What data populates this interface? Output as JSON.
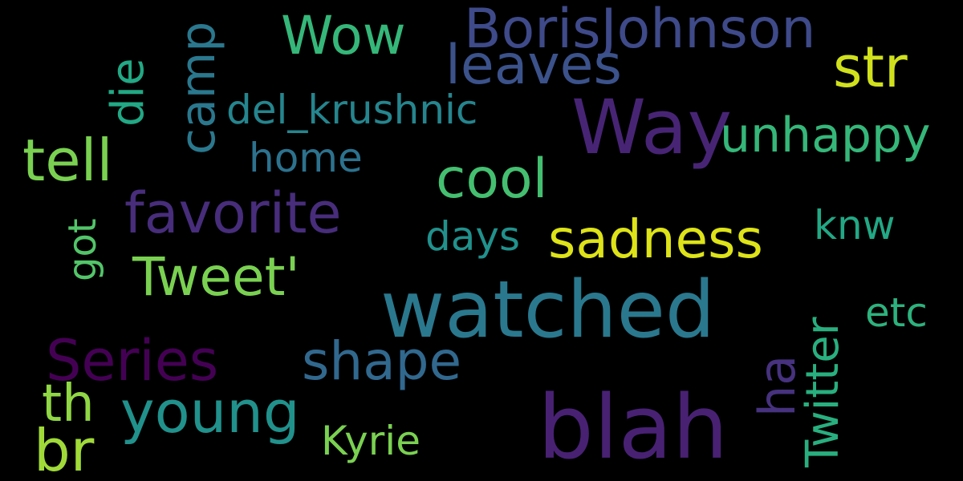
{
  "words": [
    {
      "text": "blah",
      "color": "#482173"
    },
    {
      "text": "watched",
      "color": "#2a788e"
    },
    {
      "text": "Way",
      "color": "#482475"
    },
    {
      "text": "BorisJohnson",
      "color": "#3e4a89"
    },
    {
      "text": "leaves",
      "color": "#3b528b"
    },
    {
      "text": "Wow",
      "color": "#35b779"
    },
    {
      "text": "str",
      "color": "#d0e11c"
    },
    {
      "text": "die",
      "color": "#22a884"
    },
    {
      "text": "camp",
      "color": "#2a788e"
    },
    {
      "text": "del_krushnic",
      "color": "#25858e"
    },
    {
      "text": "unhappy",
      "color": "#35b779"
    },
    {
      "text": "tell",
      "color": "#7ad151"
    },
    {
      "text": "home",
      "color": "#2c728e"
    },
    {
      "text": "cool",
      "color": "#44bf70"
    },
    {
      "text": "favorite",
      "color": "#472d7b"
    },
    {
      "text": "sadness",
      "color": "#dde318"
    },
    {
      "text": "knw",
      "color": "#22a884"
    },
    {
      "text": "days",
      "color": "#21918c"
    },
    {
      "text": "got",
      "color": "#52c569"
    },
    {
      "text": "Tweet'",
      "color": "#7ad151"
    },
    {
      "text": "etc",
      "color": "#2db27d"
    },
    {
      "text": "Twitter",
      "color": "#29af7f"
    },
    {
      "text": "Series",
      "color": "#440154"
    },
    {
      "text": "shape",
      "color": "#31688e"
    },
    {
      "text": "ha",
      "color": "#46327e"
    },
    {
      "text": "th",
      "color": "#8fd744"
    },
    {
      "text": "young",
      "color": "#21918c"
    },
    {
      "text": "br",
      "color": "#a0da39"
    },
    {
      "text": "Kyrie",
      "color": "#7ad151"
    }
  ]
}
